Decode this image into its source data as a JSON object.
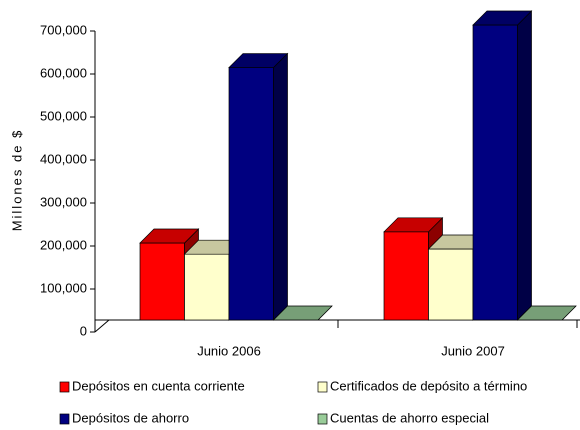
{
  "chart_data": {
    "type": "bar3d",
    "y_label": "Millones de $",
    "categories": [
      "Junio 2006",
      "Junio 2007"
    ],
    "series": [
      {
        "name": "Depósitos en cuenta corriente",
        "color": "#ff0000",
        "values": [
          207000,
          233000
        ]
      },
      {
        "name": "Certificados de depósito a término",
        "color": "#ffffcc",
        "values": [
          181000,
          193000
        ]
      },
      {
        "name": "Depósitos de ahorro",
        "color": "#000080",
        "values": [
          615000,
          714000
        ]
      },
      {
        "name": "Cuentas de ahorro especial",
        "color": "#99cc99",
        "values": [
          3000,
          3000
        ]
      }
    ],
    "ylim": [
      0,
      700000
    ],
    "yticks": [
      0,
      {
        "value": 100000,
        "label": "100,000"
      },
      {
        "value": 200000,
        "label": "200,000"
      },
      {
        "value": 300000,
        "label": "300,000"
      },
      {
        "value": 400000,
        "label": "400,000"
      },
      {
        "value": 500000,
        "label": "500,000"
      },
      {
        "value": 600000,
        "label": "600,000"
      },
      {
        "value": 700000,
        "label": "700,000"
      }
    ],
    "legend": "bottom"
  }
}
